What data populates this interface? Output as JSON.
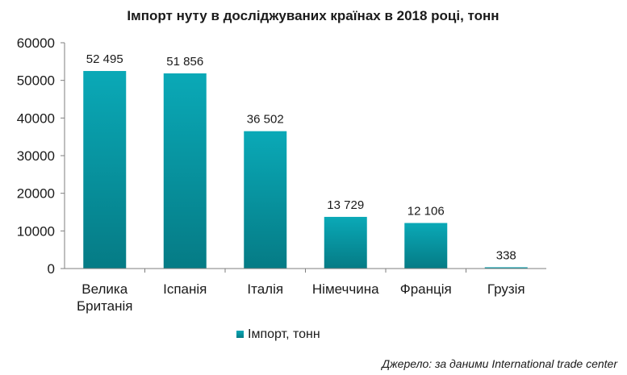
{
  "chart_data": {
    "type": "bar",
    "title": "Імпорт нуту в досліджуваних країнах в 2018 році, тонн",
    "categories": [
      [
        "Велика",
        "Британія"
      ],
      [
        "Іспанія"
      ],
      [
        "Італія"
      ],
      [
        "Німеччина"
      ],
      [
        "Франція"
      ],
      [
        "Грузія"
      ]
    ],
    "series": [
      {
        "name": "Імпорт, тонн",
        "values": [
          52495,
          51856,
          36502,
          13729,
          12106,
          338
        ],
        "data_labels": [
          "52 495",
          "51 856",
          "36 502",
          "13 729",
          "12 106",
          "338"
        ]
      }
    ],
    "ylim": [
      0,
      60000
    ],
    "yticks": [
      "0",
      "10000",
      "20000",
      "30000",
      "40000",
      "50000",
      "60000"
    ],
    "ytick_values": [
      0,
      10000,
      20000,
      30000,
      40000,
      50000,
      60000
    ],
    "grid": false,
    "legend_position": "bottom",
    "colors": {
      "bar_top": "#0aa9b7",
      "bar_bottom": "#057b85",
      "axis": "#7f7f7f"
    }
  },
  "source": "Джерело: за даними International trade center"
}
